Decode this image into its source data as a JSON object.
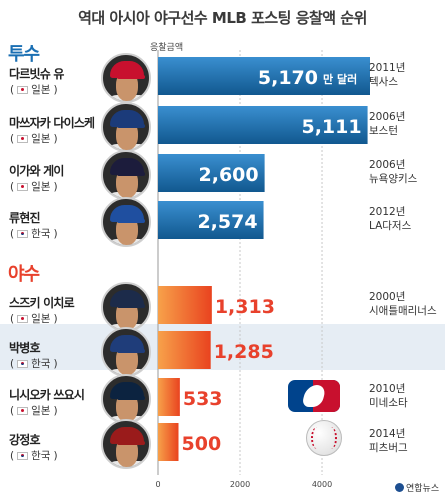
{
  "title": "역대 아시아 야구선수 MLB 포스팅 응찰액 순위",
  "sections": {
    "pitcher": "투수",
    "batter": "야수"
  },
  "axis_caption": "응찰금액",
  "unit_label": "만 달러",
  "credit": "연합뉴스",
  "colors": {
    "pitcher_bar": "#1a6fb3",
    "batter_bar": "#ee5526",
    "pitcher_heading": "#1a6fb3",
    "batter_heading": "#e8412c",
    "batter_value": "#e8412c",
    "highlight_row": "#e6edf4"
  },
  "players": [
    {
      "name": "다르빗슈 유",
      "country": "일본",
      "flag": "jp",
      "value_label": "5,170",
      "year": "2011년",
      "team": "텍사스",
      "cap_color": "#c8102e"
    },
    {
      "name": "마쓰자카 다이스케",
      "country": "일본",
      "flag": "jp",
      "value_label": "5,111",
      "year": "2006년",
      "team": "보스턴",
      "cap_color": "#1b3b7a"
    },
    {
      "name": "이가와 게이",
      "country": "일본",
      "flag": "jp",
      "value_label": "2,600",
      "year": "2006년",
      "team": "뉴욕양키스",
      "cap_color": "#1c1c3c"
    },
    {
      "name": "류현진",
      "country": "한국",
      "flag": "kr",
      "value_label": "2,574",
      "year": "2012년",
      "team": "LA다저스",
      "cap_color": "#1f4fa0"
    },
    {
      "name": "스즈키 이치로",
      "country": "일본",
      "flag": "jp",
      "value_label": "1,313",
      "year": "2000년",
      "team": "시애틀매리너스",
      "cap_color": "#1c2b4a"
    },
    {
      "name": "박병호",
      "country": "한국",
      "flag": "kr",
      "value_label": "1,285",
      "year": "",
      "team": "",
      "cap_color": "#1f3d7a"
    },
    {
      "name": "니시오카 쓰요시",
      "country": "일본",
      "flag": "jp",
      "value_label": "533",
      "year": "2010년",
      "team": "미네소타",
      "cap_color": "#0c2340"
    },
    {
      "name": "강정호",
      "country": "한국",
      "flag": "kr",
      "value_label": "500",
      "year": "2014년",
      "team": "피츠버그",
      "cap_color": "#9a1b1b"
    }
  ],
  "chart_data": {
    "type": "bar",
    "orientation": "horizontal",
    "title": "역대 아시아 야구선수 MLB 포스팅 응찰액 순위",
    "xlabel": "응찰금액",
    "unit": "만 달러",
    "categories": [
      "다르빗슈 유",
      "마쓰자카 다이스케",
      "이가와 게이",
      "류현진",
      "스즈키 이치로",
      "박병호",
      "니시오카 쓰요시",
      "강정호"
    ],
    "values": [
      5170,
      5111,
      2600,
      2574,
      1313,
      1285,
      533,
      500
    ],
    "groups": [
      "투수",
      "투수",
      "투수",
      "투수",
      "야수",
      "야수",
      "야수",
      "야수"
    ],
    "xlim": [
      0,
      5600
    ],
    "xticks": [
      0,
      2000,
      4000
    ],
    "xtick_labels": [
      "0",
      "2000",
      "4000"
    ],
    "grid": true
  }
}
